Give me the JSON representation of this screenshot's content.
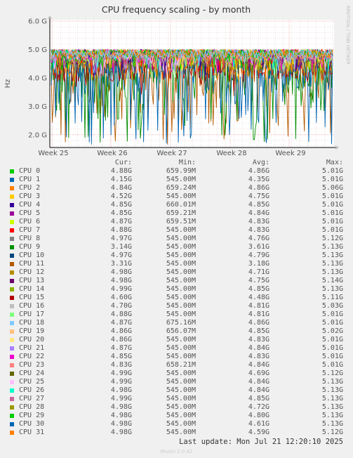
{
  "chart_data": {
    "type": "line",
    "title": "CPU frequency scaling - by month",
    "ylabel": "Hz",
    "watermark": "RRDTOOL / TOBI OETIKER",
    "yticks": [
      "2.0 G",
      "3.0 G",
      "4.0 G",
      "5.0 G",
      "6.0 G"
    ],
    "ytick_values": [
      2.0,
      3.0,
      4.0,
      5.0,
      6.0
    ],
    "ylim": [
      1.55,
      6.05
    ],
    "xticks": [
      "Week 25",
      "Week 26",
      "Week 27",
      "Week 28",
      "Week 29"
    ],
    "grid": true,
    "legend_headers": {
      "cur": "Cur:",
      "min": "Min:",
      "avg": "Avg:",
      "max": "Max:"
    },
    "series": [
      {
        "name": "CPU 0",
        "color": "#00cc00",
        "cur": "4.88G",
        "min": "659.99M",
        "avg": "4.86G",
        "max": "5.01G"
      },
      {
        "name": "CPU 1",
        "color": "#0066b3",
        "cur": "4.15G",
        "min": "545.00M",
        "avg": "4.35G",
        "max": "5.01G"
      },
      {
        "name": "CPU 2",
        "color": "#ff8000",
        "cur": "4.84G",
        "min": "659.24M",
        "avg": "4.86G",
        "max": "5.06G"
      },
      {
        "name": "CPU 3",
        "color": "#ffcc00",
        "cur": "4.52G",
        "min": "545.00M",
        "avg": "4.75G",
        "max": "5.01G"
      },
      {
        "name": "CPU 4",
        "color": "#330099",
        "cur": "4.85G",
        "min": "660.01M",
        "avg": "4.85G",
        "max": "5.01G"
      },
      {
        "name": "CPU 5",
        "color": "#990099",
        "cur": "4.85G",
        "min": "659.21M",
        "avg": "4.84G",
        "max": "5.01G"
      },
      {
        "name": "CPU 6",
        "color": "#ccff00",
        "cur": "4.87G",
        "min": "659.51M",
        "avg": "4.83G",
        "max": "5.01G"
      },
      {
        "name": "CPU 7",
        "color": "#ff0000",
        "cur": "4.88G",
        "min": "545.00M",
        "avg": "4.83G",
        "max": "5.01G"
      },
      {
        "name": "CPU 8",
        "color": "#808080",
        "cur": "4.97G",
        "min": "545.00M",
        "avg": "4.76G",
        "max": "5.12G"
      },
      {
        "name": "CPU 9",
        "color": "#008f00",
        "cur": "3.14G",
        "min": "545.00M",
        "avg": "3.61G",
        "max": "5.13G"
      },
      {
        "name": "CPU 10",
        "color": "#00487d",
        "cur": "4.97G",
        "min": "545.00M",
        "avg": "4.79G",
        "max": "5.13G"
      },
      {
        "name": "CPU 11",
        "color": "#b35a00",
        "cur": "3.31G",
        "min": "545.00M",
        "avg": "3.18G",
        "max": "5.13G"
      },
      {
        "name": "CPU 12",
        "color": "#b38f00",
        "cur": "4.98G",
        "min": "545.00M",
        "avg": "4.71G",
        "max": "5.13G"
      },
      {
        "name": "CPU 13",
        "color": "#6b006b",
        "cur": "4.98G",
        "min": "545.00M",
        "avg": "4.75G",
        "max": "5.14G"
      },
      {
        "name": "CPU 14",
        "color": "#8fb300",
        "cur": "4.99G",
        "min": "545.00M",
        "avg": "4.85G",
        "max": "5.13G"
      },
      {
        "name": "CPU 15",
        "color": "#b30000",
        "cur": "4.60G",
        "min": "545.00M",
        "avg": "4.48G",
        "max": "5.11G"
      },
      {
        "name": "CPU 16",
        "color": "#bebebe",
        "cur": "4.70G",
        "min": "545.00M",
        "avg": "4.81G",
        "max": "5.03G"
      },
      {
        "name": "CPU 17",
        "color": "#80ff80",
        "cur": "4.88G",
        "min": "545.00M",
        "avg": "4.81G",
        "max": "5.01G"
      },
      {
        "name": "CPU 18",
        "color": "#80c9ff",
        "cur": "4.87G",
        "min": "675.16M",
        "avg": "4.86G",
        "max": "5.01G"
      },
      {
        "name": "CPU 19",
        "color": "#ffc080",
        "cur": "4.86G",
        "min": "656.07M",
        "avg": "4.85G",
        "max": "5.02G"
      },
      {
        "name": "CPU 20",
        "color": "#ffe680",
        "cur": "4.86G",
        "min": "545.00M",
        "avg": "4.83G",
        "max": "5.01G"
      },
      {
        "name": "CPU 21",
        "color": "#aa80ff",
        "cur": "4.87G",
        "min": "545.00M",
        "avg": "4.84G",
        "max": "5.01G"
      },
      {
        "name": "CPU 22",
        "color": "#ee00cc",
        "cur": "4.85G",
        "min": "545.00M",
        "avg": "4.83G",
        "max": "5.01G"
      },
      {
        "name": "CPU 23",
        "color": "#ff8080",
        "cur": "4.83G",
        "min": "658.21M",
        "avg": "4.84G",
        "max": "5.01G"
      },
      {
        "name": "CPU 24",
        "color": "#666600",
        "cur": "4.99G",
        "min": "545.00M",
        "avg": "4.69G",
        "max": "5.12G"
      },
      {
        "name": "CPU 25",
        "color": "#ffbfff",
        "cur": "4.99G",
        "min": "545.00M",
        "avg": "4.84G",
        "max": "5.13G"
      },
      {
        "name": "CPU 26",
        "color": "#00ffcc",
        "cur": "4.98G",
        "min": "545.00M",
        "avg": "4.84G",
        "max": "5.13G"
      },
      {
        "name": "CPU 27",
        "color": "#cc6699",
        "cur": "4.99G",
        "min": "545.00M",
        "avg": "4.85G",
        "max": "5.13G"
      },
      {
        "name": "CPU 28",
        "color": "#999900",
        "cur": "4.98G",
        "min": "545.00M",
        "avg": "4.72G",
        "max": "5.13G"
      },
      {
        "name": "CPU 29",
        "color": "#00cc00",
        "cur": "4.98G",
        "min": "545.00M",
        "avg": "4.80G",
        "max": "5.13G"
      },
      {
        "name": "CPU 30",
        "color": "#0066b3",
        "cur": "4.98G",
        "min": "545.00M",
        "avg": "4.61G",
        "max": "5.13G"
      },
      {
        "name": "CPU 31",
        "color": "#ff8000",
        "cur": "4.98G",
        "min": "545.00M",
        "avg": "4.59G",
        "max": "5.12G"
      }
    ]
  },
  "footer": {
    "last_update": "Last update: Mon Jul 21 12:20:10 2025",
    "version": "Munin 2.0.42"
  }
}
